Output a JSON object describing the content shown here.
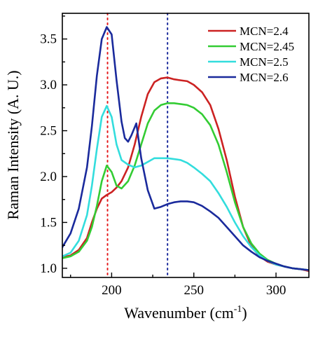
{
  "chart_data": {
    "type": "line",
    "xlabel": "Wavenumber (cm",
    "xlabel_sup": "-1",
    "xlabel_close": ")",
    "ylabel": "Raman Intensity (A. U.)",
    "xlim": [
      170,
      320
    ],
    "ylim": [
      0.9,
      3.78
    ],
    "x_ticks": [
      200,
      250,
      300
    ],
    "y_ticks": [
      1.0,
      1.5,
      2.0,
      2.5,
      3.0,
      3.5
    ],
    "y_tick_labels": [
      "1.0",
      "1.5",
      "2.0",
      "2.5",
      "3.0",
      "3.5"
    ],
    "grid": false,
    "legend_position": "top-right",
    "reference_lines": [
      {
        "x": 197.5,
        "color": "#e41a1c",
        "style": "dotted"
      },
      {
        "x": 234,
        "color": "#1a2a9c",
        "style": "dotted"
      }
    ],
    "series": [
      {
        "name": "MCN=2.4",
        "color": "#cc2222",
        "x": [
          170,
          175,
          180,
          185,
          188,
          191,
          194,
          197,
          200,
          203,
          206,
          210,
          214,
          218,
          222,
          226,
          230,
          234,
          238,
          242,
          246,
          250,
          255,
          260,
          265,
          270,
          275,
          280,
          285,
          290,
          295,
          300,
          305,
          310,
          315,
          320
        ],
        "y": [
          1.12,
          1.14,
          1.2,
          1.33,
          1.5,
          1.65,
          1.76,
          1.8,
          1.83,
          1.88,
          1.95,
          2.1,
          2.35,
          2.65,
          2.9,
          3.03,
          3.07,
          3.08,
          3.06,
          3.05,
          3.04,
          3.0,
          2.92,
          2.78,
          2.52,
          2.18,
          1.78,
          1.45,
          1.24,
          1.13,
          1.07,
          1.04,
          1.02,
          1.0,
          0.99,
          0.97
        ]
      },
      {
        "name": "MCN=2.45",
        "color": "#33cc33",
        "x": [
          170,
          175,
          180,
          185,
          188,
          191,
          194,
          197,
          200,
          203,
          206,
          210,
          214,
          218,
          222,
          226,
          230,
          234,
          238,
          242,
          246,
          250,
          255,
          260,
          265,
          270,
          275,
          280,
          285,
          290,
          295,
          300,
          305,
          310,
          315,
          320
        ],
        "y": [
          1.11,
          1.13,
          1.18,
          1.3,
          1.45,
          1.68,
          1.95,
          2.12,
          2.05,
          1.9,
          1.87,
          1.95,
          2.12,
          2.35,
          2.58,
          2.72,
          2.78,
          2.8,
          2.8,
          2.79,
          2.78,
          2.75,
          2.68,
          2.56,
          2.35,
          2.05,
          1.72,
          1.45,
          1.27,
          1.16,
          1.09,
          1.05,
          1.02,
          1.0,
          0.99,
          0.98
        ]
      },
      {
        "name": "MCN=2.5",
        "color": "#33dddd",
        "x": [
          170,
          175,
          180,
          185,
          188,
          191,
          194,
          197,
          200,
          203,
          206,
          210,
          214,
          218,
          222,
          226,
          230,
          234,
          238,
          242,
          246,
          250,
          255,
          260,
          265,
          270,
          275,
          280,
          285,
          290,
          295,
          300,
          305,
          310,
          315,
          320
        ],
        "y": [
          1.13,
          1.17,
          1.3,
          1.58,
          1.9,
          2.3,
          2.65,
          2.77,
          2.65,
          2.35,
          2.18,
          2.13,
          2.1,
          2.12,
          2.16,
          2.2,
          2.2,
          2.2,
          2.19,
          2.18,
          2.15,
          2.1,
          2.03,
          1.95,
          1.82,
          1.67,
          1.5,
          1.35,
          1.23,
          1.14,
          1.08,
          1.04,
          1.02,
          1.0,
          0.99,
          0.98
        ]
      },
      {
        "name": "MCN=2.6",
        "color": "#1a2a9c",
        "x": [
          170,
          175,
          180,
          185,
          188,
          191,
          194,
          197,
          200,
          203,
          206,
          208,
          210,
          212,
          215,
          218,
          222,
          226,
          230,
          234,
          238,
          242,
          246,
          250,
          255,
          260,
          265,
          270,
          275,
          280,
          285,
          290,
          295,
          300,
          305,
          310,
          315,
          320
        ],
        "y": [
          1.23,
          1.38,
          1.65,
          2.1,
          2.55,
          3.1,
          3.5,
          3.63,
          3.55,
          3.05,
          2.6,
          2.42,
          2.38,
          2.45,
          2.58,
          2.2,
          1.85,
          1.65,
          1.67,
          1.7,
          1.72,
          1.73,
          1.73,
          1.72,
          1.68,
          1.62,
          1.55,
          1.45,
          1.35,
          1.25,
          1.18,
          1.12,
          1.08,
          1.05,
          1.02,
          1.0,
          0.99,
          0.98
        ]
      }
    ]
  }
}
